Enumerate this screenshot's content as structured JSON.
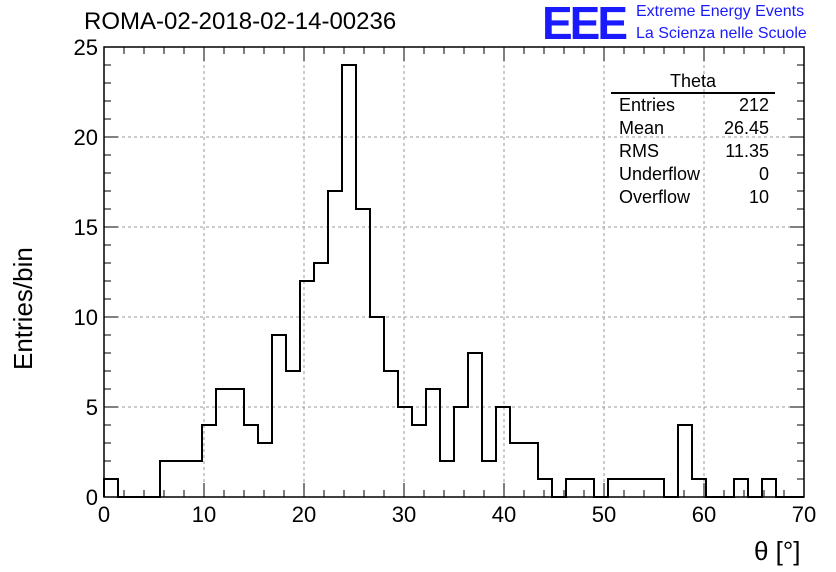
{
  "title": "ROMA-02-2018-02-14-00236",
  "logo": {
    "mark": "EEE",
    "line1": "Extreme Energy Events",
    "line2": "La Scienza nelle Scuole",
    "color": "#1a1aff"
  },
  "stats_box": {
    "title": "Theta",
    "rows": [
      {
        "label": "Entries",
        "value": "212"
      },
      {
        "label": "Mean",
        "value": "26.45"
      },
      {
        "label": "RMS",
        "value": "11.35"
      },
      {
        "label": "Underflow",
        "value": "0"
      },
      {
        "label": "Overflow",
        "value": "10"
      }
    ]
  },
  "chart_data": {
    "type": "bar",
    "title": "ROMA-02-2018-02-14-00236",
    "xlabel": "θ [°]",
    "ylabel": "Entries/bin",
    "xlim": [
      0,
      70
    ],
    "ylim": [
      0,
      25
    ],
    "grid": true,
    "legend": "top-right",
    "bin_width": 1.4,
    "bin_edges_start": 0,
    "values": [
      1,
      0,
      0,
      0,
      2,
      2,
      2,
      4,
      6,
      6,
      4,
      3,
      9,
      7,
      12,
      13,
      17,
      24,
      16,
      10,
      7,
      5,
      4,
      6,
      2,
      5,
      8,
      2,
      5,
      3,
      3,
      1,
      0,
      1,
      1,
      0,
      1,
      1,
      1,
      1,
      0,
      4,
      1,
      0,
      0,
      1,
      0,
      1,
      0,
      0
    ],
    "x_ticks": [
      "0",
      "10",
      "20",
      "30",
      "40",
      "50",
      "60",
      "70"
    ],
    "y_ticks": [
      "0",
      "5",
      "10",
      "15",
      "20",
      "25"
    ],
    "line_color": "#000000",
    "grid_color": "#9a9a9a"
  }
}
